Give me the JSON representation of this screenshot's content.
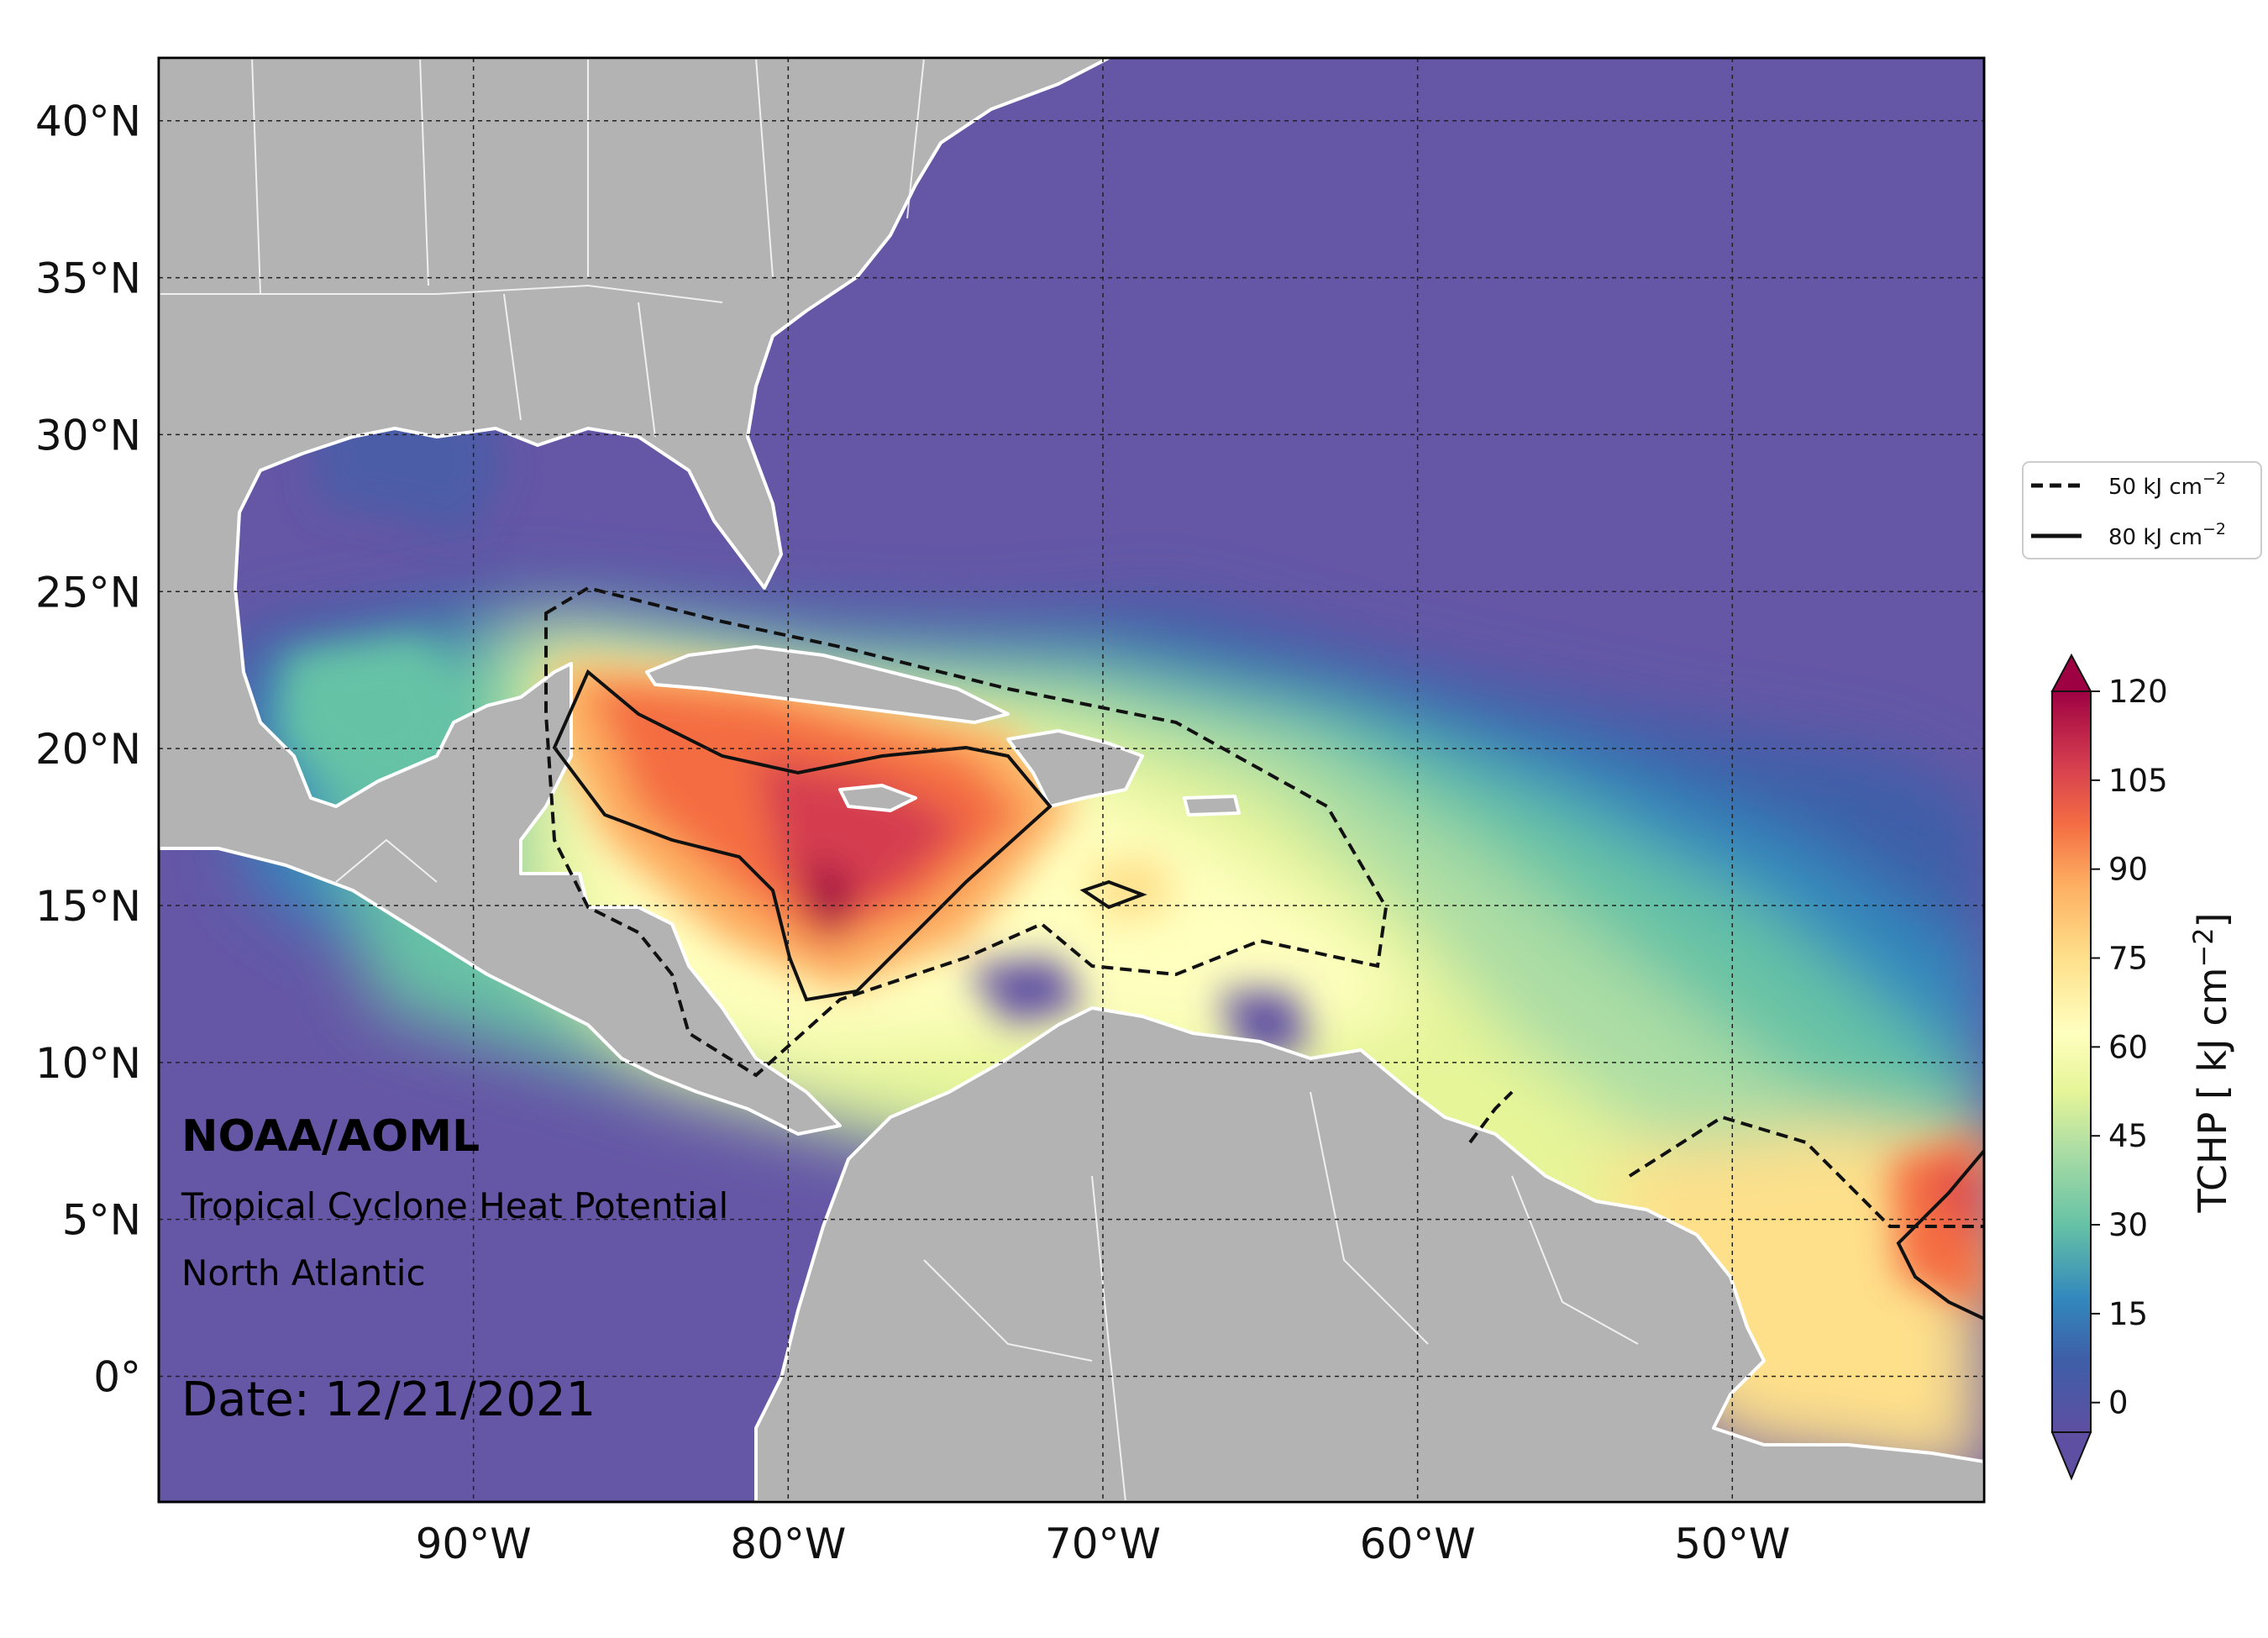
{
  "map": {
    "extent": {
      "lon_min": -100,
      "lon_max": -42,
      "lat_min": -4,
      "lat_max": 42
    },
    "lat_ticks": [
      {
        "value": 40,
        "label": "40°N"
      },
      {
        "value": 35,
        "label": "35°N"
      },
      {
        "value": 30,
        "label": "30°N"
      },
      {
        "value": 25,
        "label": "25°N"
      },
      {
        "value": 20,
        "label": "20°N"
      },
      {
        "value": 15,
        "label": "15°N"
      },
      {
        "value": 10,
        "label": "10°N"
      },
      {
        "value": 5,
        "label": "5°N"
      },
      {
        "value": 0,
        "label": "0°"
      }
    ],
    "lon_ticks": [
      {
        "value": -90,
        "label": "90°W"
      },
      {
        "value": -80,
        "label": "80°W"
      },
      {
        "value": -70,
        "label": "70°W"
      },
      {
        "value": -60,
        "label": "60°W"
      },
      {
        "value": -50,
        "label": "50°W"
      }
    ],
    "gridlines": "dashed",
    "land_color": "#b3b3b3",
    "ocean_cold_color": "#6557a6"
  },
  "annotation": {
    "org": "NOAA/AOML",
    "product": "Tropical Cyclone Heat Potential",
    "region": "North Atlantic",
    "date": "Date: 12/21/2021"
  },
  "legend": {
    "placement": "right",
    "items": [
      {
        "style": "dashed",
        "label_main": "50 kJ cm",
        "label_sup": "−2"
      },
      {
        "style": "solid",
        "label_main": "80 kJ cm",
        "label_sup": "−2"
      }
    ]
  },
  "colorbar": {
    "label_main": "TCHP [ kJ cm",
    "label_sup": "−2",
    "label_end": "]",
    "ticks": [
      "120",
      "105",
      "90",
      "75",
      "60",
      "45",
      "30",
      "15",
      "0"
    ],
    "tick_values": [
      120,
      105,
      90,
      75,
      60,
      45,
      30,
      15,
      0
    ],
    "min": -5,
    "max": 120,
    "colors": [
      "#5e4fa2",
      "#3e5fa8",
      "#3288bd",
      "#66c2a5",
      "#abdda4",
      "#e6f598",
      "#ffffbf",
      "#fee08b",
      "#fdae61",
      "#f46d43",
      "#d53e4f",
      "#9e0142"
    ]
  }
}
